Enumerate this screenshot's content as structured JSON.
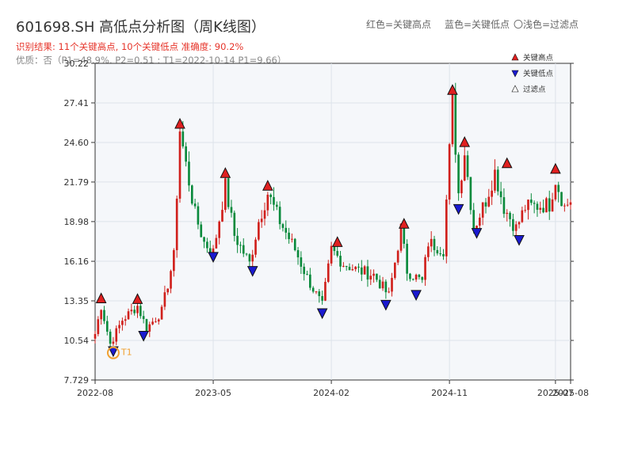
{
  "chart_data": {
    "type": "candlestick",
    "title": "601698.SH 高低点分析图（周K线图）",
    "legend_hint": [
      "红色=关键高点",
      "蓝色=关键低点",
      "〇浅色=过滤点"
    ],
    "subtitle_result": "识别结果: 11个关键高点, 10个关键低点  准确度: 90.2%",
    "subtitle_metrics": "优质：否（P1=48.9%, P2=0.51 ; T1=2022-10-14 P1=9.66）",
    "legend": [
      {
        "label": "关键高点",
        "color": "#e02020",
        "marker": "up-triangle"
      },
      {
        "label": "关键低点",
        "color": "#1a1ad0",
        "marker": "down-triangle"
      },
      {
        "label": "过滤点",
        "color": "#ffffff",
        "marker": "up-triangle-outline"
      }
    ],
    "y_ticks": [
      "7.729",
      "10.54",
      "13.35",
      "16.16",
      "18.98",
      "21.79",
      "24.60",
      "27.41",
      "30.22"
    ],
    "ylim": [
      7.729,
      30.22
    ],
    "x_ticks": [
      {
        "label": "2022-08",
        "week": 0
      },
      {
        "label": "2023-05",
        "week": 39
      },
      {
        "label": "2024-02",
        "week": 78
      },
      {
        "label": "2024-11",
        "week": 117
      },
      {
        "label": "2025-07",
        "week": 152
      },
      {
        "label": "2025-08",
        "week": 157
      }
    ],
    "x_range_weeks": [
      0,
      157
    ],
    "colors": {
      "up": "#d0201c",
      "down": "#0a8a3c",
      "high_marker": "#e02020",
      "low_marker": "#1a1ad0",
      "t1": "#f0a030"
    },
    "anchors": [
      [
        0,
        11.0
      ],
      [
        2,
        13.0
      ],
      [
        5,
        10.3
      ],
      [
        9,
        12.0
      ],
      [
        14,
        13.0
      ],
      [
        17,
        11.4
      ],
      [
        22,
        12.6
      ],
      [
        26,
        16.5
      ],
      [
        28,
        25.5
      ],
      [
        30,
        23.0
      ],
      [
        33,
        19.5
      ],
      [
        36,
        17.5
      ],
      [
        39,
        16.8
      ],
      [
        43,
        21.5
      ],
      [
        46,
        18.0
      ],
      [
        51,
        16.0
      ],
      [
        54,
        19.0
      ],
      [
        57,
        21.0
      ],
      [
        61,
        19.0
      ],
      [
        66,
        17.0
      ],
      [
        70,
        15.0
      ],
      [
        75,
        13.0
      ],
      [
        78,
        17.0
      ],
      [
        82,
        16.0
      ],
      [
        87,
        15.5
      ],
      [
        92,
        15.2
      ],
      [
        97,
        13.7
      ],
      [
        101,
        18.5
      ],
      [
        103,
        15.5
      ],
      [
        108,
        14.7
      ],
      [
        110,
        17.5
      ],
      [
        115,
        17.0
      ],
      [
        118,
        27.5
      ],
      [
        120,
        21.0
      ],
      [
        122,
        24.0
      ],
      [
        125,
        18.5
      ],
      [
        129,
        20.5
      ],
      [
        132,
        22.5
      ],
      [
        135,
        20.0
      ],
      [
        139,
        18.5
      ],
      [
        142,
        20.0
      ],
      [
        150,
        20.2
      ],
      [
        152,
        22.0
      ],
      [
        155,
        20.0
      ],
      [
        157,
        20.5
      ]
    ],
    "key_highs": [
      {
        "week": 2,
        "price": 13.1
      },
      {
        "week": 14,
        "price": 13.05
      },
      {
        "week": 28,
        "price": 25.5
      },
      {
        "week": 43,
        "price": 22.0
      },
      {
        "week": 57,
        "price": 21.1
      },
      {
        "week": 80,
        "price": 17.1
      },
      {
        "week": 102,
        "price": 18.4
      },
      {
        "week": 118,
        "price": 27.9
      },
      {
        "week": 122,
        "price": 24.2
      },
      {
        "week": 136,
        "price": 22.7
      },
      {
        "week": 152,
        "price": 22.3
      }
    ],
    "key_lows": [
      {
        "week": 6,
        "price": 10.2
      },
      {
        "week": 16,
        "price": 11.3
      },
      {
        "week": 39,
        "price": 16.9
      },
      {
        "week": 52,
        "price": 15.9
      },
      {
        "week": 75,
        "price": 12.9
      },
      {
        "week": 96,
        "price": 13.5
      },
      {
        "week": 106,
        "price": 14.2
      },
      {
        "week": 120,
        "price": 20.3
      },
      {
        "week": 126,
        "price": 18.6
      },
      {
        "week": 140,
        "price": 18.1
      }
    ],
    "t1_marker": {
      "label": "T1",
      "week": 6,
      "price": 9.66
    }
  }
}
